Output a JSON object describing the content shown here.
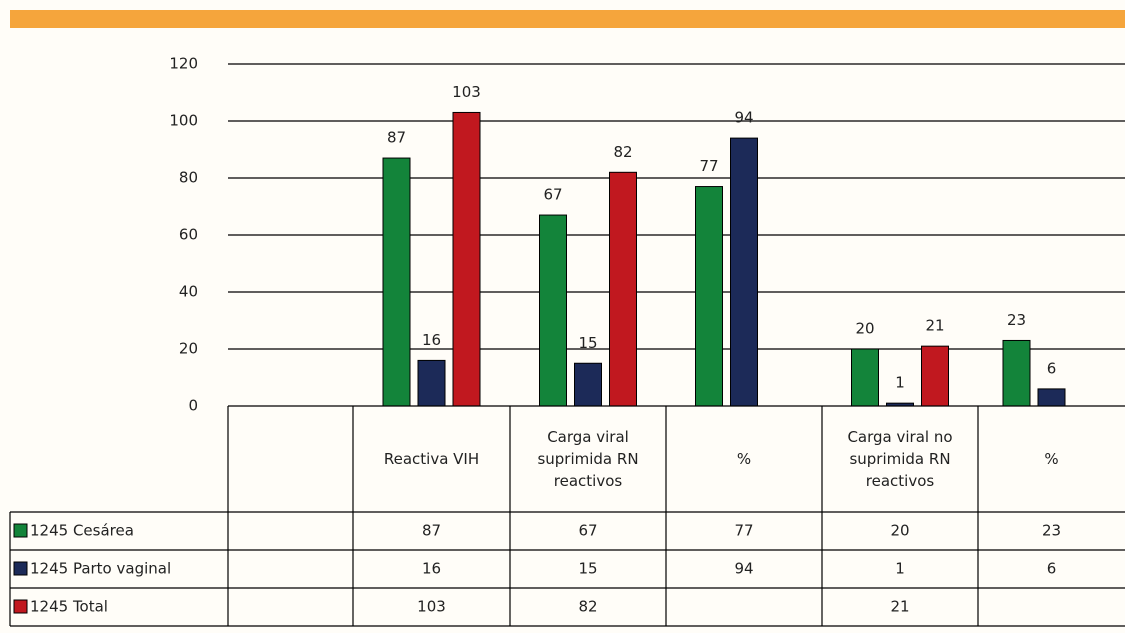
{
  "chart_data": {
    "type": "bar",
    "categories": [
      null,
      "Reactiva VIH",
      "Carga viral suprimida RN reactivos",
      "%",
      "Carga viral no suprimida RN reactivos",
      "%"
    ],
    "series": [
      {
        "name": "1245 Cesárea",
        "color": "#13843a",
        "values": [
          null,
          87,
          67,
          77,
          20,
          23
        ]
      },
      {
        "name": "1245 Parto vaginal",
        "color": "#1c2a58",
        "values": [
          null,
          16,
          15,
          94,
          1,
          6
        ]
      },
      {
        "name": "1245 Total",
        "color": "#c1181f",
        "values": [
          null,
          103,
          82,
          null,
          21,
          null
        ]
      }
    ],
    "ylim": [
      0,
      120
    ],
    "yticks": [
      0,
      20,
      40,
      60,
      80,
      100,
      120
    ],
    "grid": true
  }
}
